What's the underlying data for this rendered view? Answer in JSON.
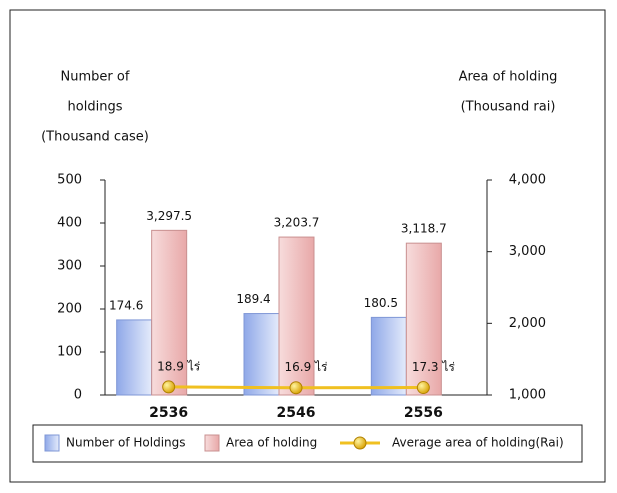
{
  "chart_data": {
    "type": "bar",
    "ylabel": [
      "Number of",
      "holdings",
      "(Thousand case)"
    ],
    "y2label": [
      "Area of holding",
      "(Thousand rai)"
    ],
    "categories": [
      "2536",
      "2546",
      "2556"
    ],
    "series": [
      {
        "name": "Number of Holdings",
        "type": "bar",
        "color": "#b4c6ef",
        "values": [
          174.6,
          189.4,
          180.5
        ]
      },
      {
        "name": "Area of holding",
        "type": "bar",
        "color": "#f2c4c4",
        "axis": "y2",
        "values": [
          3297.5,
          3203.7,
          3118.7
        ],
        "value_labels": [
          "3,297.5",
          "3,203.7",
          "3,118.7"
        ]
      },
      {
        "name": "Average area of holding(Rai)",
        "type": "line",
        "color": "#f0c020",
        "values": [
          18.9,
          16.9,
          17.3
        ],
        "value_labels": [
          "18.9 ไร่",
          "16.9 ไร่",
          "17.3 ไร่"
        ]
      }
    ],
    "ylim": [
      0,
      500
    ],
    "yticks": [
      0,
      100,
      200,
      300,
      400,
      500
    ],
    "y2lim": [
      1000,
      4000
    ],
    "y2ticks": [
      {
        "value": 1000,
        "label": "1,000"
      },
      {
        "value": 2000,
        "label": "2,000"
      },
      {
        "value": 3000,
        "label": "3,000"
      },
      {
        "value": 4000,
        "label": "4,000"
      }
    ],
    "legend": "bottom"
  }
}
